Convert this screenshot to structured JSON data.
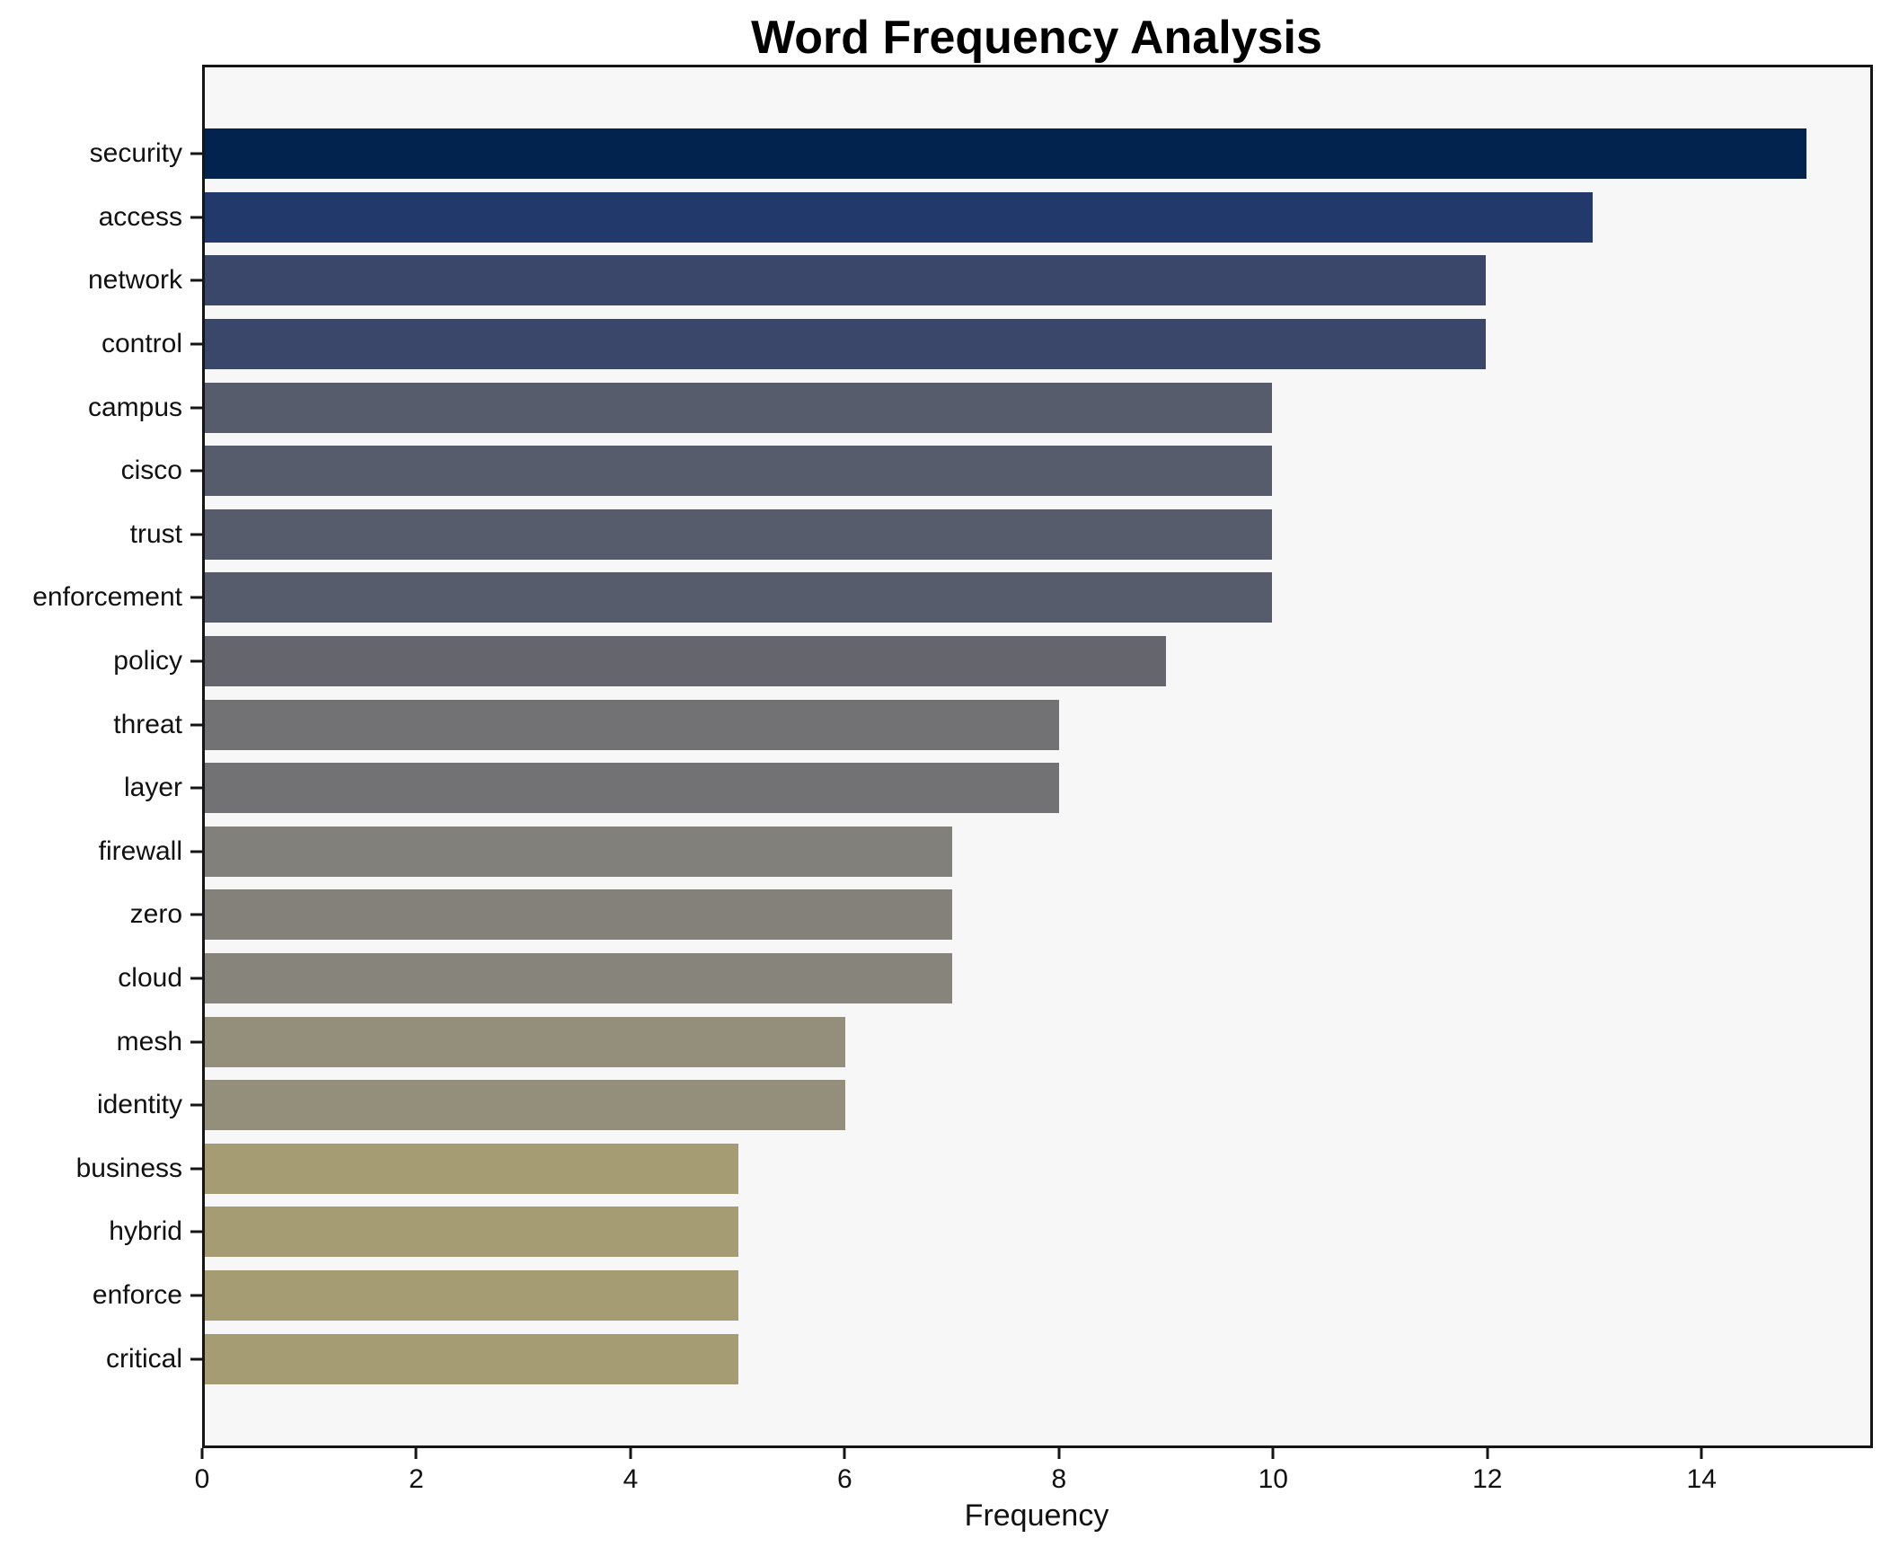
{
  "chart_data": {
    "type": "bar",
    "orientation": "horizontal",
    "title": "Word Frequency Analysis",
    "xlabel": "Frequency",
    "ylabel": "",
    "grid": false,
    "legend_position": "none",
    "xlim": [
      0,
      15.6
    ],
    "x_ticks": [
      0,
      2,
      4,
      6,
      8,
      10,
      12,
      14
    ],
    "categories": [
      "security",
      "access",
      "network",
      "control",
      "campus",
      "cisco",
      "trust",
      "enforcement",
      "policy",
      "threat",
      "layer",
      "firewall",
      "zero",
      "cloud",
      "mesh",
      "identity",
      "business",
      "hybrid",
      "enforce",
      "critical"
    ],
    "values": [
      15,
      13,
      12,
      12,
      10,
      10,
      10,
      10,
      9,
      8,
      8,
      7,
      7,
      7,
      6,
      6,
      5,
      5,
      5,
      5
    ],
    "bar_colors": [
      "#01234e",
      "#223a6b",
      "#3a476b",
      "#3a476b",
      "#575c6c",
      "#575c6c",
      "#575c6c",
      "#575c6c",
      "#65656e",
      "#727274",
      "#727274",
      "#82807a",
      "#84817b",
      "#87847b",
      "#938f7b",
      "#938f7b",
      "#a59c74",
      "#a59c74",
      "#a59c74",
      "#a59c74"
    ],
    "colors": {
      "figure_bg": "#ffffff",
      "plot_bg": "#f7f7f8",
      "spine": "#151515",
      "text": "#111111"
    }
  }
}
